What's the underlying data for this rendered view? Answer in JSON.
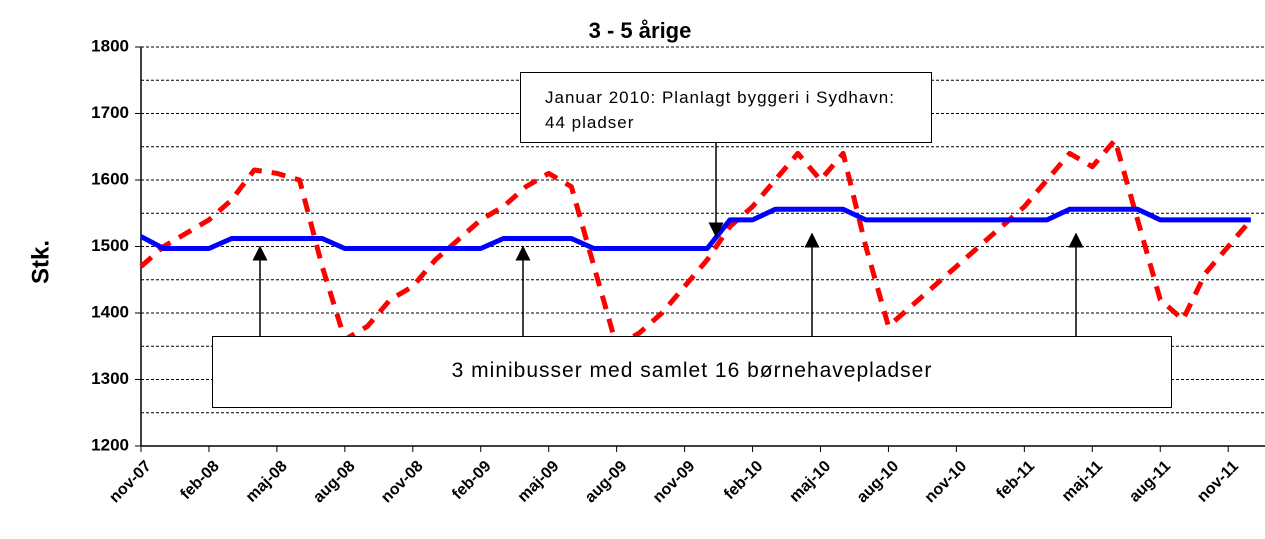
{
  "chart_data": {
    "type": "line",
    "title": "3 - 5 årige",
    "ylabel": "Stk.",
    "categories": [
      "nov-07",
      null,
      null,
      "feb-08",
      null,
      null,
      "maj-08",
      null,
      null,
      "aug-08",
      null,
      null,
      "nov-08",
      null,
      null,
      "feb-09",
      null,
      null,
      "maj-09",
      null,
      null,
      "aug-09",
      null,
      null,
      "nov-09",
      null,
      null,
      "feb-10",
      null,
      null,
      "maj-10",
      null,
      null,
      "aug-10",
      null,
      null,
      "nov-10",
      null,
      null,
      "feb-11",
      null,
      null,
      "maj-11",
      null,
      null,
      "aug-11",
      null,
      null,
      "nov-11",
      null
    ],
    "series": [
      {
        "color": "#ff0000",
        "dashed": true,
        "values": [
          1470,
          1500,
          1520,
          1540,
          1570,
          1615,
          1610,
          1600,
          1470,
          1360,
          1380,
          1420,
          1440,
          1480,
          1510,
          1540,
          1560,
          1590,
          1610,
          1590,
          1470,
          1350,
          1370,
          1400,
          1440,
          1480,
          1530,
          1560,
          1600,
          1640,
          1600,
          1640,
          1500,
          1380,
          1410,
          1440,
          1470,
          1500,
          1530,
          1560,
          1600,
          1640,
          1620,
          1660,
          1540,
          1420,
          1390,
          1460,
          1500,
          1540
        ]
      },
      {
        "color": "#0000ff",
        "dashed": false,
        "values": [
          1515,
          1497,
          1497,
          1497,
          1512,
          1512,
          1512,
          1512,
          1512,
          1497,
          1497,
          1497,
          1497,
          1497,
          1497,
          1497,
          1512,
          1512,
          1512,
          1512,
          1497,
          1497,
          1497,
          1497,
          1497,
          1497,
          1540,
          1540,
          1556,
          1556,
          1556,
          1556,
          1540,
          1540,
          1540,
          1540,
          1540,
          1540,
          1540,
          1540,
          1540,
          1556,
          1556,
          1556,
          1556,
          1540,
          1540,
          1540,
          1540,
          1540
        ]
      }
    ],
    "ylim": [
      1200,
      1800
    ],
    "yticks": [
      1200,
      1300,
      1400,
      1500,
      1600,
      1700,
      1800
    ],
    "minor_yticks": [
      1250,
      1350,
      1450,
      1550,
      1650,
      1750
    ],
    "grid": true,
    "annotations": [
      "Januar 2010: Planlagt byggeri i Sydhavn: 44 pladser",
      "3 minibusser med samlet 16 børnehavepladser"
    ]
  }
}
